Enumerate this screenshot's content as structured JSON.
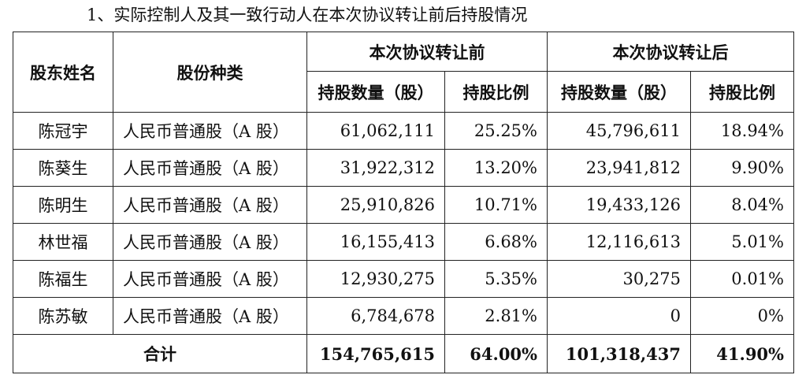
{
  "heading": "1、实际控制人及其一致行动人在本次协议转让前后持股情况",
  "table": {
    "header": {
      "shareholder_name": "股东姓名",
      "share_type": "股份种类",
      "before_group": "本次协议转让前",
      "after_group": "本次协议转让后",
      "before_shares": "持股数量（股）",
      "before_ratio": "持股比例",
      "after_shares": "持股数量（股）",
      "after_ratio": "持股比例"
    },
    "rows": [
      {
        "name": "陈冠宇",
        "type": "人民币普通股（A 股）",
        "before_shares": "61,062,111",
        "before_ratio": "25.25%",
        "after_shares": "45,796,611",
        "after_ratio": "18.94%"
      },
      {
        "name": "陈葵生",
        "type": "人民币普通股（A 股）",
        "before_shares": "31,922,312",
        "before_ratio": "13.20%",
        "after_shares": "23,941,812",
        "after_ratio": "9.90%"
      },
      {
        "name": "陈明生",
        "type": "人民币普通股（A 股）",
        "before_shares": "25,910,826",
        "before_ratio": "10.71%",
        "after_shares": "19,433,126",
        "after_ratio": "8.04%"
      },
      {
        "name": "林世福",
        "type": "人民币普通股（A 股）",
        "before_shares": "16,155,413",
        "before_ratio": "6.68%",
        "after_shares": "12,116,613",
        "after_ratio": "5.01%"
      },
      {
        "name": "陈福生",
        "type": "人民币普通股（A 股）",
        "before_shares": "12,930,275",
        "before_ratio": "5.35%",
        "after_shares": "30,275",
        "after_ratio": "0.01%"
      },
      {
        "name": "陈苏敏",
        "type": "人民币普通股（A 股）",
        "before_shares": "6,784,678",
        "before_ratio": "2.81%",
        "after_shares": "0",
        "after_ratio": "0%"
      }
    ],
    "total": {
      "label": "合计",
      "before_shares": "154,765,615",
      "before_ratio": "64.00%",
      "after_shares": "101,318,437",
      "after_ratio": "41.90%"
    }
  }
}
